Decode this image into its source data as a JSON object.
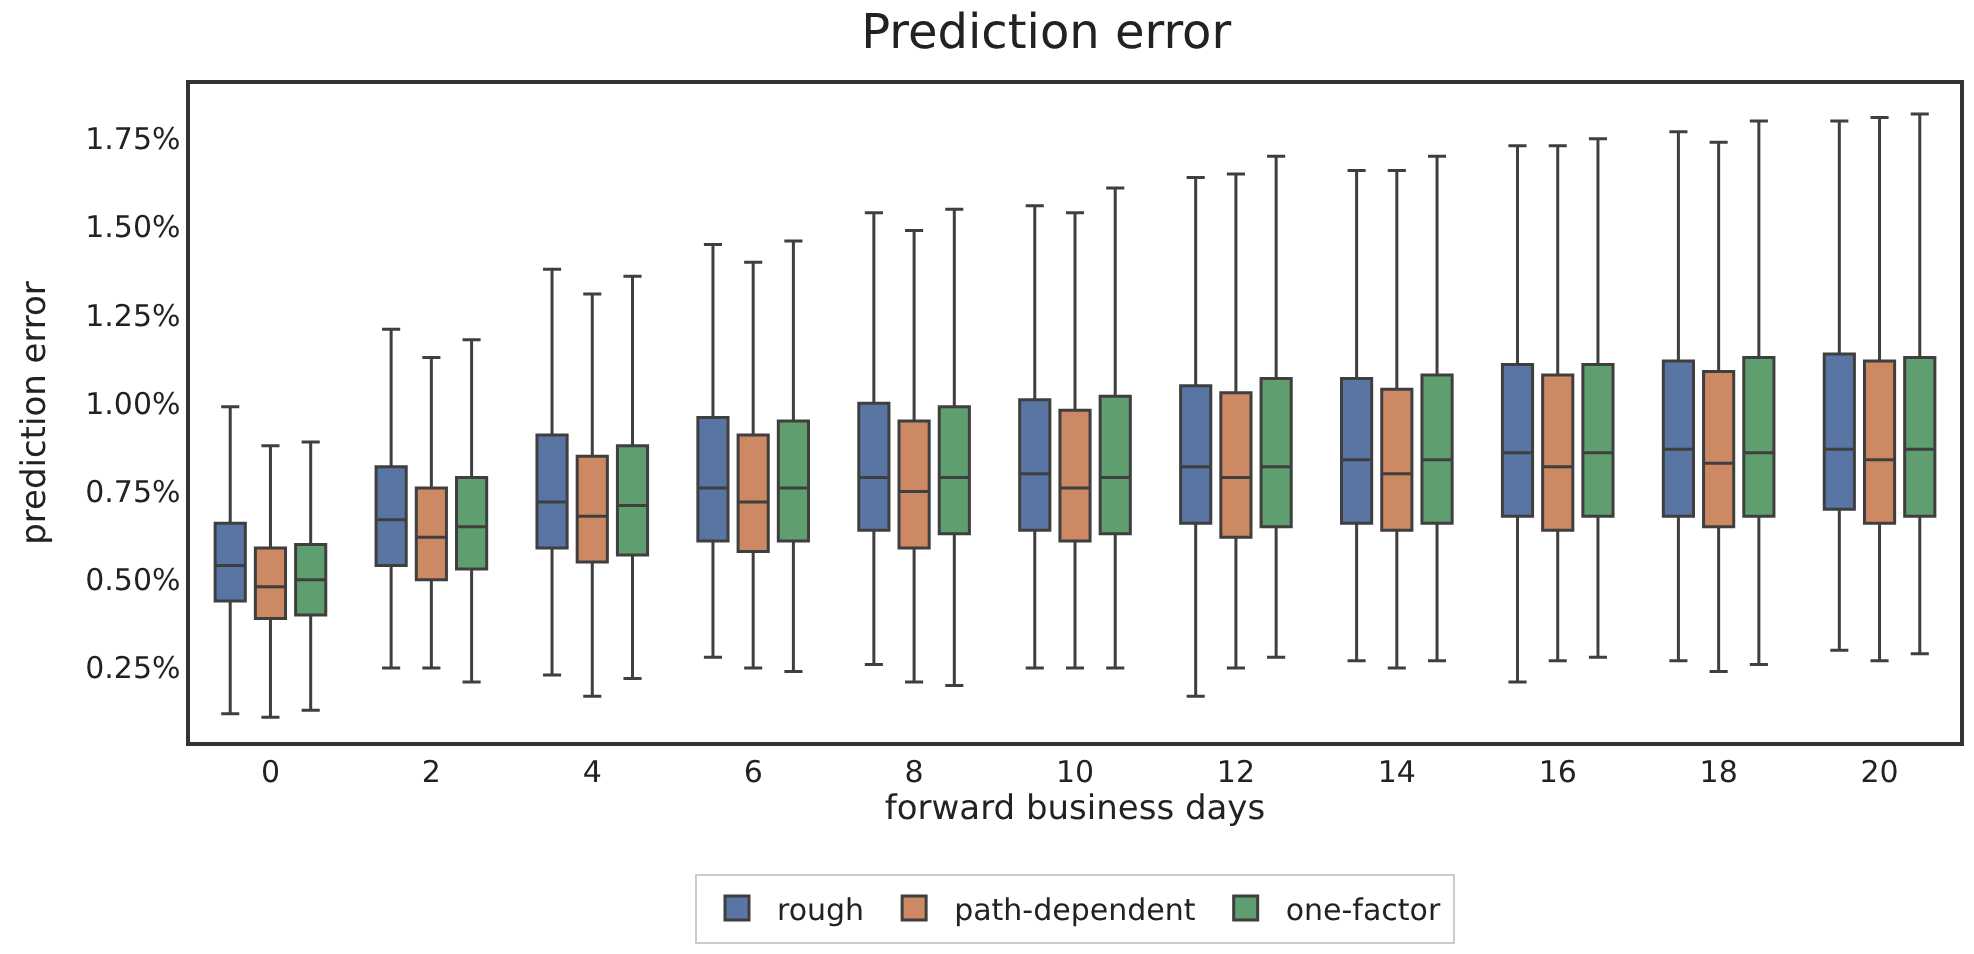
{
  "chart_data": {
    "type": "box",
    "title": "Prediction error",
    "xlabel": "forward business days",
    "ylabel": "prediction error",
    "categories": [
      "0",
      "2",
      "4",
      "6",
      "8",
      "10",
      "12",
      "14",
      "16",
      "18",
      "20"
    ],
    "ylim": [
      0.04,
      1.905
    ],
    "yticks": [
      {
        "value": 0.25,
        "label": "0.25%"
      },
      {
        "value": 0.5,
        "label": "0.50%"
      },
      {
        "value": 0.75,
        "label": "0.75%"
      },
      {
        "value": 1.0,
        "label": "1.00%"
      },
      {
        "value": 1.25,
        "label": "1.25%"
      },
      {
        "value": 1.5,
        "label": "1.50%"
      },
      {
        "value": 1.75,
        "label": "1.75%"
      }
    ],
    "legend": "bottom",
    "series": [
      {
        "name": "rough",
        "color": "#5975a4",
        "boxes": [
          {
            "low": 0.12,
            "q1": 0.44,
            "median": 0.54,
            "q3": 0.66,
            "high": 0.99
          },
          {
            "low": 0.25,
            "q1": 0.54,
            "median": 0.67,
            "q3": 0.82,
            "high": 1.21
          },
          {
            "low": 0.23,
            "q1": 0.59,
            "median": 0.72,
            "q3": 0.91,
            "high": 1.38
          },
          {
            "low": 0.28,
            "q1": 0.61,
            "median": 0.76,
            "q3": 0.96,
            "high": 1.45
          },
          {
            "low": 0.26,
            "q1": 0.64,
            "median": 0.79,
            "q3": 1.0,
            "high": 1.54
          },
          {
            "low": 0.25,
            "q1": 0.64,
            "median": 0.8,
            "q3": 1.01,
            "high": 1.56
          },
          {
            "low": 0.17,
            "q1": 0.66,
            "median": 0.82,
            "q3": 1.05,
            "high": 1.64
          },
          {
            "low": 0.27,
            "q1": 0.66,
            "median": 0.84,
            "q3": 1.07,
            "high": 1.66
          },
          {
            "low": 0.21,
            "q1": 0.68,
            "median": 0.86,
            "q3": 1.11,
            "high": 1.73
          },
          {
            "low": 0.27,
            "q1": 0.68,
            "median": 0.87,
            "q3": 1.12,
            "high": 1.77
          },
          {
            "low": 0.3,
            "q1": 0.7,
            "median": 0.87,
            "q3": 1.14,
            "high": 1.8
          }
        ]
      },
      {
        "name": "path-dependent",
        "color": "#cc8963",
        "boxes": [
          {
            "low": 0.11,
            "q1": 0.39,
            "median": 0.48,
            "q3": 0.59,
            "high": 0.88
          },
          {
            "low": 0.25,
            "q1": 0.5,
            "median": 0.62,
            "q3": 0.76,
            "high": 1.13
          },
          {
            "low": 0.17,
            "q1": 0.55,
            "median": 0.68,
            "q3": 0.85,
            "high": 1.31
          },
          {
            "low": 0.25,
            "q1": 0.58,
            "median": 0.72,
            "q3": 0.91,
            "high": 1.4
          },
          {
            "low": 0.21,
            "q1": 0.59,
            "median": 0.75,
            "q3": 0.95,
            "high": 1.49
          },
          {
            "low": 0.25,
            "q1": 0.61,
            "median": 0.76,
            "q3": 0.98,
            "high": 1.54
          },
          {
            "low": 0.25,
            "q1": 0.62,
            "median": 0.79,
            "q3": 1.03,
            "high": 1.65
          },
          {
            "low": 0.25,
            "q1": 0.64,
            "median": 0.8,
            "q3": 1.04,
            "high": 1.66
          },
          {
            "low": 0.27,
            "q1": 0.64,
            "median": 0.82,
            "q3": 1.08,
            "high": 1.73
          },
          {
            "low": 0.24,
            "q1": 0.65,
            "median": 0.83,
            "q3": 1.09,
            "high": 1.74
          },
          {
            "low": 0.27,
            "q1": 0.66,
            "median": 0.84,
            "q3": 1.12,
            "high": 1.81
          }
        ]
      },
      {
        "name": "one-factor",
        "color": "#5f9e6e",
        "boxes": [
          {
            "low": 0.13,
            "q1": 0.4,
            "median": 0.5,
            "q3": 0.6,
            "high": 0.89
          },
          {
            "low": 0.21,
            "q1": 0.53,
            "median": 0.65,
            "q3": 0.79,
            "high": 1.18
          },
          {
            "low": 0.22,
            "q1": 0.57,
            "median": 0.71,
            "q3": 0.88,
            "high": 1.36
          },
          {
            "low": 0.24,
            "q1": 0.61,
            "median": 0.76,
            "q3": 0.95,
            "high": 1.46
          },
          {
            "low": 0.2,
            "q1": 0.63,
            "median": 0.79,
            "q3": 0.99,
            "high": 1.55
          },
          {
            "low": 0.25,
            "q1": 0.63,
            "median": 0.79,
            "q3": 1.02,
            "high": 1.61
          },
          {
            "low": 0.28,
            "q1": 0.65,
            "median": 0.82,
            "q3": 1.07,
            "high": 1.7
          },
          {
            "low": 0.27,
            "q1": 0.66,
            "median": 0.84,
            "q3": 1.08,
            "high": 1.7
          },
          {
            "low": 0.28,
            "q1": 0.68,
            "median": 0.86,
            "q3": 1.11,
            "high": 1.75
          },
          {
            "low": 0.26,
            "q1": 0.68,
            "median": 0.86,
            "q3": 1.13,
            "high": 1.8
          },
          {
            "low": 0.29,
            "q1": 0.68,
            "median": 0.87,
            "q3": 1.13,
            "high": 1.82
          }
        ]
      }
    ]
  }
}
